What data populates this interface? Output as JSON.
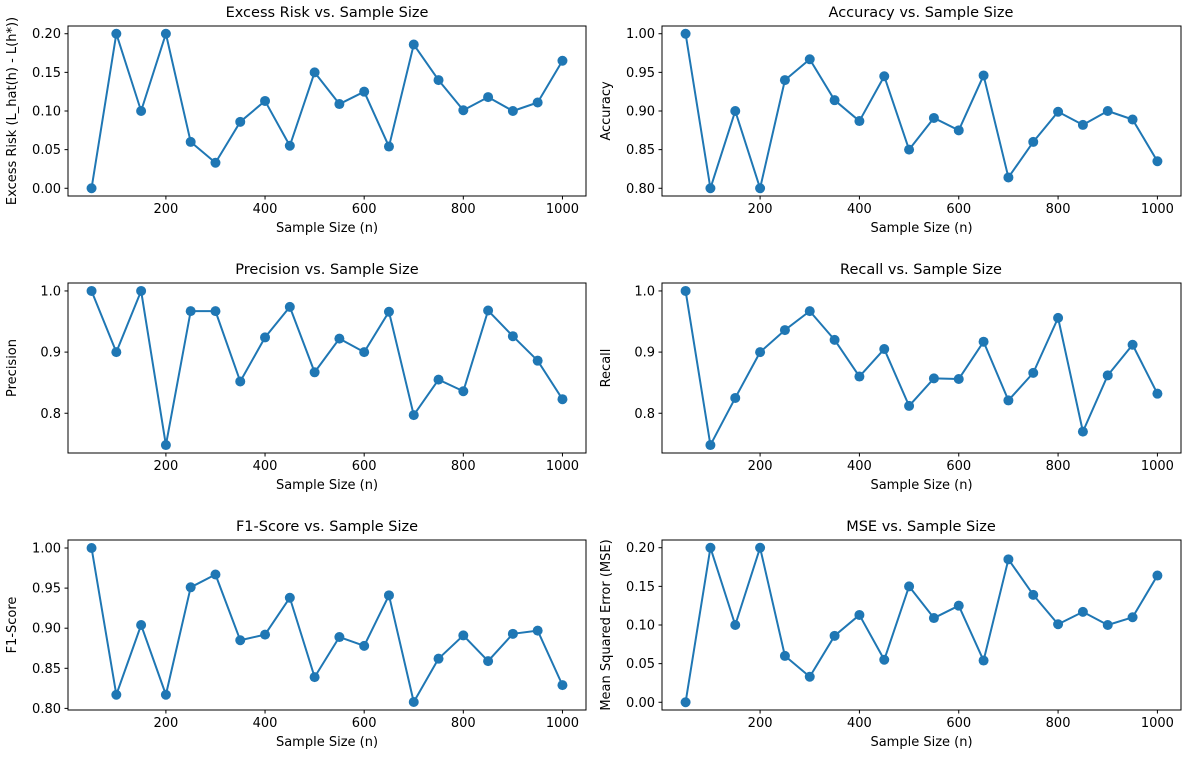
{
  "figure": {
    "background": "#ffffff",
    "line_color": "#1f77b4",
    "marker_color": "#1f77b4",
    "spine_color": "#000000",
    "text_color": "#000000"
  },
  "chart_data": [
    {
      "type": "line",
      "title": "Excess Risk vs. Sample Size",
      "xlabel": "Sample Size (n)",
      "ylabel": "Excess Risk (L_hat(h) - L(h*))",
      "x": [
        50,
        100,
        150,
        200,
        250,
        300,
        350,
        400,
        450,
        500,
        550,
        600,
        650,
        700,
        750,
        800,
        850,
        900,
        950,
        1000
      ],
      "values": [
        0.0,
        0.2,
        0.1,
        0.2,
        0.06,
        0.033,
        0.086,
        0.113,
        0.055,
        0.15,
        0.109,
        0.125,
        0.054,
        0.186,
        0.14,
        0.101,
        0.118,
        0.1,
        0.111,
        0.165
      ],
      "xlim": [
        2.5,
        1047.5
      ],
      "ylim": [
        -0.01,
        0.21
      ],
      "xticks": [
        200,
        400,
        600,
        800,
        1000
      ],
      "xtick_labels": [
        "200",
        "400",
        "600",
        "800",
        "1000"
      ],
      "yticks": [
        0.0,
        0.05,
        0.1,
        0.15,
        0.2
      ],
      "ytick_labels": [
        "0.00",
        "0.05",
        "0.10",
        "0.15",
        "0.20"
      ],
      "grid": false,
      "legend": "none",
      "marker": "circle"
    },
    {
      "type": "line",
      "title": "Accuracy vs. Sample Size",
      "xlabel": "Sample Size (n)",
      "ylabel": "Accuracy",
      "x": [
        50,
        100,
        150,
        200,
        250,
        300,
        350,
        400,
        450,
        500,
        550,
        600,
        650,
        700,
        750,
        800,
        850,
        900,
        950,
        1000
      ],
      "values": [
        1.0,
        0.8,
        0.9,
        0.8,
        0.94,
        0.967,
        0.914,
        0.887,
        0.945,
        0.85,
        0.891,
        0.875,
        0.946,
        0.814,
        0.86,
        0.899,
        0.882,
        0.9,
        0.889,
        0.835
      ],
      "xlim": [
        2.5,
        1047.5
      ],
      "ylim": [
        0.79,
        1.01
      ],
      "xticks": [
        200,
        400,
        600,
        800,
        1000
      ],
      "xtick_labels": [
        "200",
        "400",
        "600",
        "800",
        "1000"
      ],
      "yticks": [
        0.8,
        0.85,
        0.9,
        0.95,
        1.0
      ],
      "ytick_labels": [
        "0.80",
        "0.85",
        "0.90",
        "0.95",
        "1.00"
      ],
      "grid": false,
      "legend": "none",
      "marker": "circle"
    },
    {
      "type": "line",
      "title": "Precision vs. Sample Size",
      "xlabel": "Sample Size (n)",
      "ylabel": "Precision",
      "x": [
        50,
        100,
        150,
        200,
        250,
        300,
        350,
        400,
        450,
        500,
        550,
        600,
        650,
        700,
        750,
        800,
        850,
        900,
        950,
        1000
      ],
      "values": [
        1.0,
        0.9,
        1.0,
        0.748,
        0.967,
        0.967,
        0.852,
        0.924,
        0.974,
        0.867,
        0.922,
        0.9,
        0.966,
        0.797,
        0.855,
        0.836,
        0.968,
        0.926,
        0.886,
        0.823
      ],
      "xlim": [
        2.5,
        1047.5
      ],
      "ylim": [
        0.735,
        1.013
      ],
      "xticks": [
        200,
        400,
        600,
        800,
        1000
      ],
      "xtick_labels": [
        "200",
        "400",
        "600",
        "800",
        "1000"
      ],
      "yticks": [
        0.8,
        0.9,
        1.0
      ],
      "ytick_labels": [
        "0.8",
        "0.9",
        "1.0"
      ],
      "grid": false,
      "legend": "none",
      "marker": "circle"
    },
    {
      "type": "line",
      "title": "Recall vs. Sample Size",
      "xlabel": "Sample Size (n)",
      "ylabel": "Recall",
      "x": [
        50,
        100,
        150,
        200,
        250,
        300,
        350,
        400,
        450,
        500,
        550,
        600,
        650,
        700,
        750,
        800,
        850,
        900,
        950,
        1000
      ],
      "values": [
        1.0,
        0.748,
        0.825,
        0.9,
        0.936,
        0.967,
        0.92,
        0.86,
        0.905,
        0.812,
        0.857,
        0.856,
        0.917,
        0.821,
        0.866,
        0.956,
        0.77,
        0.862,
        0.912,
        0.832
      ],
      "xlim": [
        2.5,
        1047.5
      ],
      "ylim": [
        0.735,
        1.013
      ],
      "xticks": [
        200,
        400,
        600,
        800,
        1000
      ],
      "xtick_labels": [
        "200",
        "400",
        "600",
        "800",
        "1000"
      ],
      "yticks": [
        0.8,
        0.9,
        1.0
      ],
      "ytick_labels": [
        "0.8",
        "0.9",
        "1.0"
      ],
      "grid": false,
      "legend": "none",
      "marker": "circle"
    },
    {
      "type": "line",
      "title": "F1-Score vs. Sample Size",
      "xlabel": "Sample Size (n)",
      "ylabel": "F1-Score",
      "x": [
        50,
        100,
        150,
        200,
        250,
        300,
        350,
        400,
        450,
        500,
        550,
        600,
        650,
        700,
        750,
        800,
        850,
        900,
        950,
        1000
      ],
      "values": [
        1.0,
        0.817,
        0.904,
        0.817,
        0.951,
        0.967,
        0.885,
        0.892,
        0.938,
        0.839,
        0.889,
        0.878,
        0.941,
        0.808,
        0.862,
        0.891,
        0.859,
        0.893,
        0.897,
        0.829
      ],
      "xlim": [
        2.5,
        1047.5
      ],
      "ylim": [
        0.798,
        1.01
      ],
      "xticks": [
        200,
        400,
        600,
        800,
        1000
      ],
      "xtick_labels": [
        "200",
        "400",
        "600",
        "800",
        "1000"
      ],
      "yticks": [
        0.8,
        0.85,
        0.9,
        0.95,
        1.0
      ],
      "ytick_labels": [
        "0.80",
        "0.85",
        "0.90",
        "0.95",
        "1.00"
      ],
      "grid": false,
      "legend": "none",
      "marker": "circle"
    },
    {
      "type": "line",
      "title": "MSE vs. Sample Size",
      "xlabel": "Sample Size (n)",
      "ylabel": "Mean Squared Error (MSE)",
      "x": [
        50,
        100,
        150,
        200,
        250,
        300,
        350,
        400,
        450,
        500,
        550,
        600,
        650,
        700,
        750,
        800,
        850,
        900,
        950,
        1000
      ],
      "values": [
        0.0,
        0.2,
        0.1,
        0.2,
        0.06,
        0.033,
        0.086,
        0.113,
        0.055,
        0.15,
        0.109,
        0.125,
        0.054,
        0.185,
        0.139,
        0.101,
        0.117,
        0.1,
        0.11,
        0.164
      ],
      "xlim": [
        2.5,
        1047.5
      ],
      "ylim": [
        -0.01,
        0.21
      ],
      "xticks": [
        200,
        400,
        600,
        800,
        1000
      ],
      "xtick_labels": [
        "200",
        "400",
        "600",
        "800",
        "1000"
      ],
      "yticks": [
        0.0,
        0.05,
        0.1,
        0.15,
        0.2
      ],
      "ytick_labels": [
        "0.00",
        "0.05",
        "0.10",
        "0.15",
        "0.20"
      ],
      "grid": false,
      "legend": "none",
      "marker": "circle"
    }
  ]
}
